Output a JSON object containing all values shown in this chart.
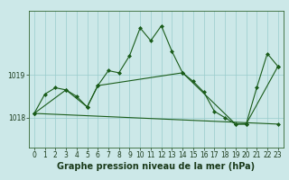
{
  "title": "Graphe pression niveau de la mer (hPa)",
  "bg_color": "#cce8e8",
  "plot_bg_color": "#cce8e8",
  "grid_color": "#99cccc",
  "line_color": "#1a5c1a",
  "xlim": [
    -0.5,
    23.5
  ],
  "ylim": [
    1017.3,
    1020.5
  ],
  "yticks": [
    1018,
    1019
  ],
  "xticks": [
    0,
    1,
    2,
    3,
    4,
    5,
    6,
    7,
    8,
    9,
    10,
    11,
    12,
    13,
    14,
    15,
    16,
    17,
    18,
    19,
    20,
    21,
    22,
    23
  ],
  "series": [
    {
      "x": [
        0,
        1,
        2,
        3,
        4,
        5,
        6,
        7,
        8,
        9,
        10,
        11,
        12,
        13,
        14,
        15,
        16,
        17,
        18,
        19,
        20,
        21,
        22,
        23
      ],
      "y": [
        1018.1,
        1018.55,
        1018.7,
        1018.65,
        1018.5,
        1018.25,
        1018.75,
        1019.1,
        1019.05,
        1019.45,
        1020.1,
        1019.8,
        1020.15,
        1019.55,
        1019.05,
        1018.85,
        1018.6,
        1018.15,
        1018.0,
        1017.85,
        1017.85,
        1018.7,
        1019.5,
        1019.2
      ]
    },
    {
      "x": [
        0,
        3,
        5,
        6,
        14,
        19,
        20,
        23
      ],
      "y": [
        1018.1,
        1018.65,
        1018.25,
        1018.75,
        1019.05,
        1017.85,
        1017.85,
        1019.2
      ]
    },
    {
      "x": [
        0,
        23
      ],
      "y": [
        1018.1,
        1017.85
      ]
    }
  ],
  "title_fontsize": 7,
  "tick_fontsize": 5.5,
  "marker": "D",
  "markersize": 2.0,
  "linewidth": 0.8
}
